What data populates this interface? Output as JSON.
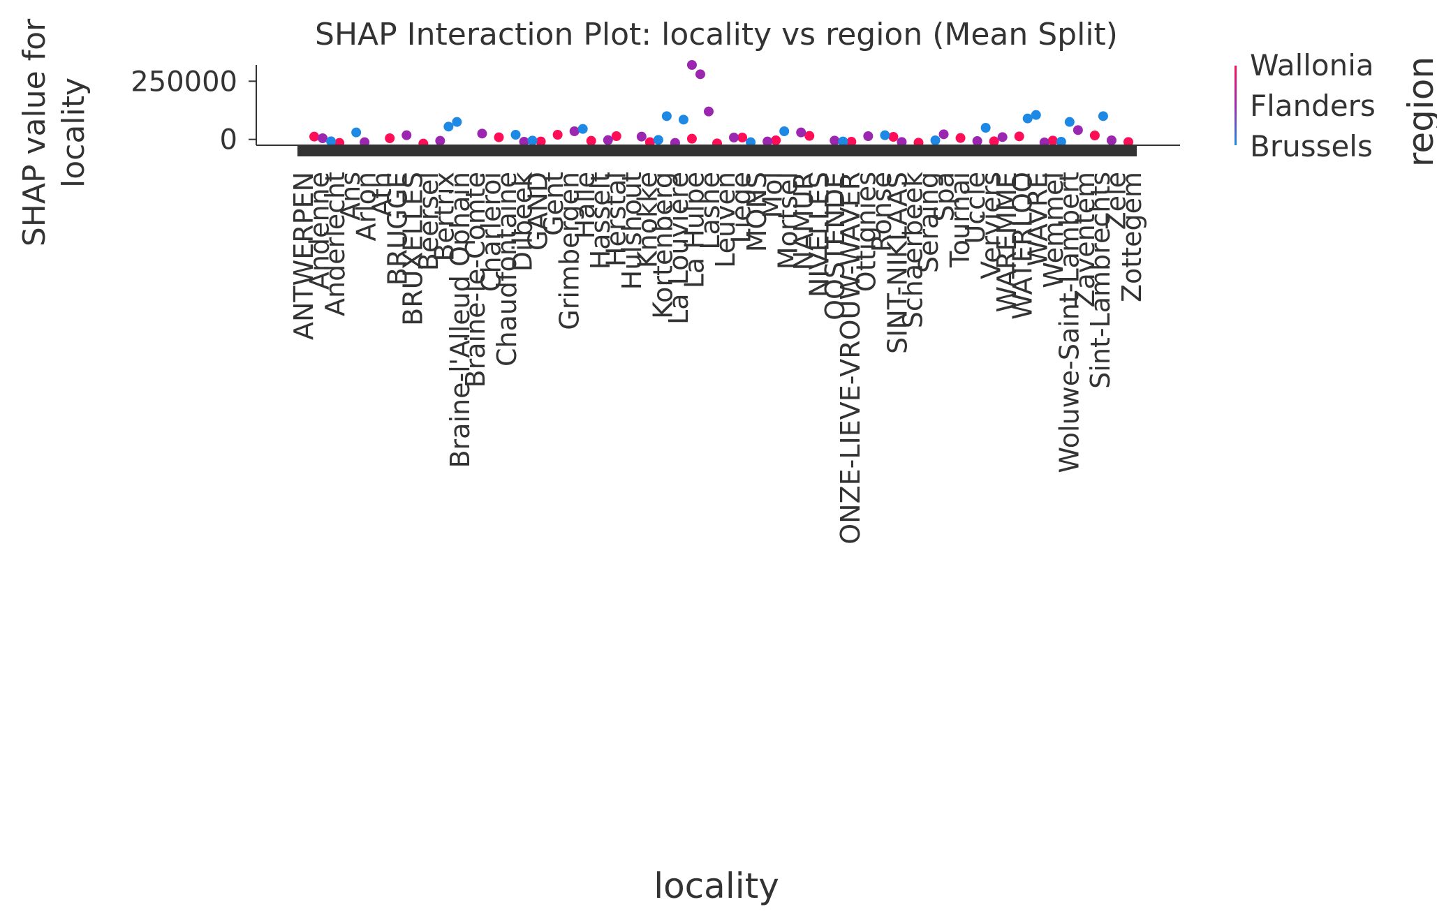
{
  "chart_data": {
    "type": "scatter",
    "title": "SHAP Interaction Plot: locality vs region (Mean Split)",
    "xlabel": "locality",
    "ylabel": "SHAP value for\nlocality",
    "ylim": [
      -25000,
      320000
    ],
    "y_ticks": [
      0,
      250000
    ],
    "y_tick_labels": [
      "0",
      "250000"
    ],
    "legend": {
      "title": "region",
      "placement": "right",
      "entries": [
        "Wallonia",
        "Flanders",
        "Brussels"
      ],
      "colors": {
        "Wallonia": "#ff0d57",
        "Flanders": "#9b27b0",
        "Brussels": "#1e88e5"
      }
    },
    "visible_x_tick_labels": [
      "ANTWERPEN",
      "Andenne",
      "Anderlecht",
      "Ans",
      "Arlon",
      "Ath",
      "BRUGGE",
      "BRUXELLES",
      "Beersel",
      "Bertrix",
      "Braine-l'Alleud Ophain",
      "Braine-le-Comte",
      "Charleroi",
      "Chaudfontaine",
      "Dilbeek",
      "GAND",
      "Gent",
      "Grimbergen",
      "Halle",
      "Hasselt",
      "Herstal",
      "Hulshout",
      "Knokke",
      "Kortenberg",
      "La Louvière",
      "La Hulpe",
      "Lasne",
      "Leuven",
      "Liège",
      "MONS",
      "Mol",
      "Mortsel",
      "NAMUR",
      "NIVELLES",
      "OOSTENDE",
      "ONZE-LIEVE-VROUW-WAVER",
      "Ottignies",
      "Ronse",
      "SINT-NIKLAAS",
      "Schaerbeek",
      "Seraing",
      "Spa",
      "Tournai",
      "Uccle",
      "Verviers",
      "WAREMME",
      "WATERLOO",
      "WAVRE",
      "Wemmel",
      "Woluwe-Saint-Lambert",
      "Zaventem",
      "Sint-Lambrechts",
      "Zele",
      "Zottegem"
    ],
    "series": [
      {
        "name": "Wallonia",
        "x_fraction": [
          0.02,
          0.05,
          0.11,
          0.15,
          0.24,
          0.29,
          0.31,
          0.35,
          0.38,
          0.42,
          0.47,
          0.5,
          0.53,
          0.57,
          0.61,
          0.66,
          0.71,
          0.74,
          0.79,
          0.83,
          0.86,
          0.9,
          0.95,
          0.99
        ],
        "values": [
          12000,
          -15000,
          5000,
          -18000,
          9000,
          -9000,
          20000,
          -6000,
          14000,
          -12000,
          3000,
          -17000,
          8000,
          -4000,
          15000,
          -10000,
          11000,
          -14000,
          6000,
          -8000,
          13000,
          -5000,
          17000,
          -11000
        ]
      },
      {
        "name": "Flanders",
        "x_fraction": [
          0.03,
          0.08,
          0.13,
          0.17,
          0.22,
          0.27,
          0.33,
          0.37,
          0.41,
          0.45,
          0.47,
          0.48,
          0.49,
          0.52,
          0.56,
          0.6,
          0.64,
          0.68,
          0.72,
          0.77,
          0.81,
          0.84,
          0.89,
          0.93,
          0.97
        ],
        "values": [
          5000,
          -12000,
          18000,
          -6000,
          25000,
          -10000,
          35000,
          -3000,
          12000,
          -15000,
          320000,
          280000,
          120000,
          8000,
          -9000,
          30000,
          -5000,
          14000,
          -11000,
          22000,
          -7000,
          10000,
          -13000,
          40000,
          -4000
        ]
      },
      {
        "name": "Brussels",
        "x_fraction": [
          0.04,
          0.07,
          0.18,
          0.19,
          0.26,
          0.28,
          0.34,
          0.43,
          0.44,
          0.46,
          0.54,
          0.58,
          0.65,
          0.7,
          0.76,
          0.82,
          0.87,
          0.88,
          0.91,
          0.92,
          0.96
        ],
        "values": [
          -8000,
          30000,
          55000,
          75000,
          20000,
          -5000,
          45000,
          -2000,
          100000,
          85000,
          -12000,
          35000,
          -9000,
          18000,
          -4000,
          50000,
          90000,
          105000,
          -10000,
          75000,
          100000
        ]
      }
    ]
  }
}
